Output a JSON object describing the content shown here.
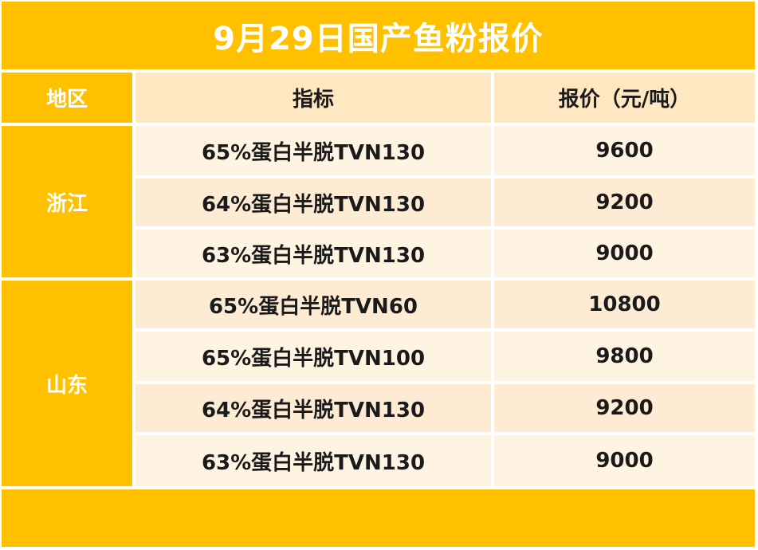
{
  "title": "9月29日国产鱼粉报价",
  "headers": {
    "region": "地区",
    "spec": "指标",
    "price": "报价（元/吨）"
  },
  "regions": [
    {
      "name": "浙江",
      "rows": [
        {
          "spec": "65%蛋白半脱TVN130",
          "price": "9600"
        },
        {
          "spec": "64%蛋白半脱TVN130",
          "price": "9200"
        },
        {
          "spec": "63%蛋白半脱TVN130",
          "price": "9000"
        }
      ]
    },
    {
      "name": "山东",
      "rows": [
        {
          "spec": "65%蛋白半脱TVN60",
          "price": "10800"
        },
        {
          "spec": "65%蛋白半脱TVN100",
          "price": "9800"
        },
        {
          "spec": "64%蛋白半脱TVN130",
          "price": "9200"
        },
        {
          "spec": "63%蛋白半脱TVN130",
          "price": "9000"
        }
      ]
    }
  ],
  "colors": {
    "accent": "#FFC000",
    "header_bg": "#FFE7C2",
    "row_light": "#FFF3E2",
    "row_dark": "#FDEBD3"
  }
}
